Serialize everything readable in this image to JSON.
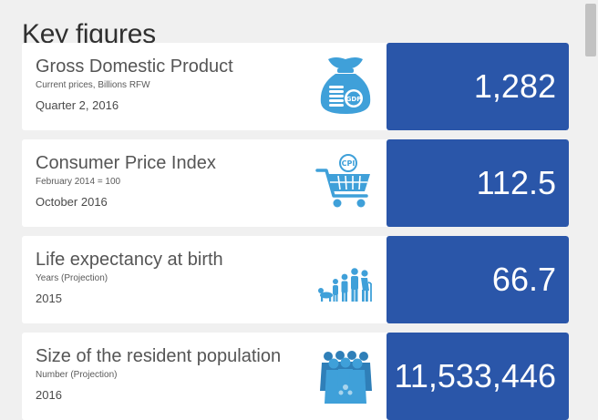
{
  "page": {
    "title": "Key figures"
  },
  "colors": {
    "value_bg": "#2a56a9",
    "icon": "#3fa0d9"
  },
  "cards": [
    {
      "name": "Gross Domestic Product",
      "subtitle": "Current prices, Billions RFW",
      "period": "Quarter 2, 2016",
      "value": "1,282",
      "icon": "money-bag-icon"
    },
    {
      "name": "Consumer Price Index",
      "subtitle": "February 2014 = 100",
      "period": "October 2016",
      "value": "112.5",
      "icon": "shopping-cart-icon"
    },
    {
      "name": "Life expectancy at birth",
      "subtitle": "Years (Projection)",
      "period": "2015",
      "value": "66.7",
      "icon": "life-stages-icon"
    },
    {
      "name": "Size of the resident population",
      "subtitle": "Number (Projection)",
      "period": "2016",
      "value": "11,533,446",
      "icon": "population-group-icon"
    }
  ]
}
